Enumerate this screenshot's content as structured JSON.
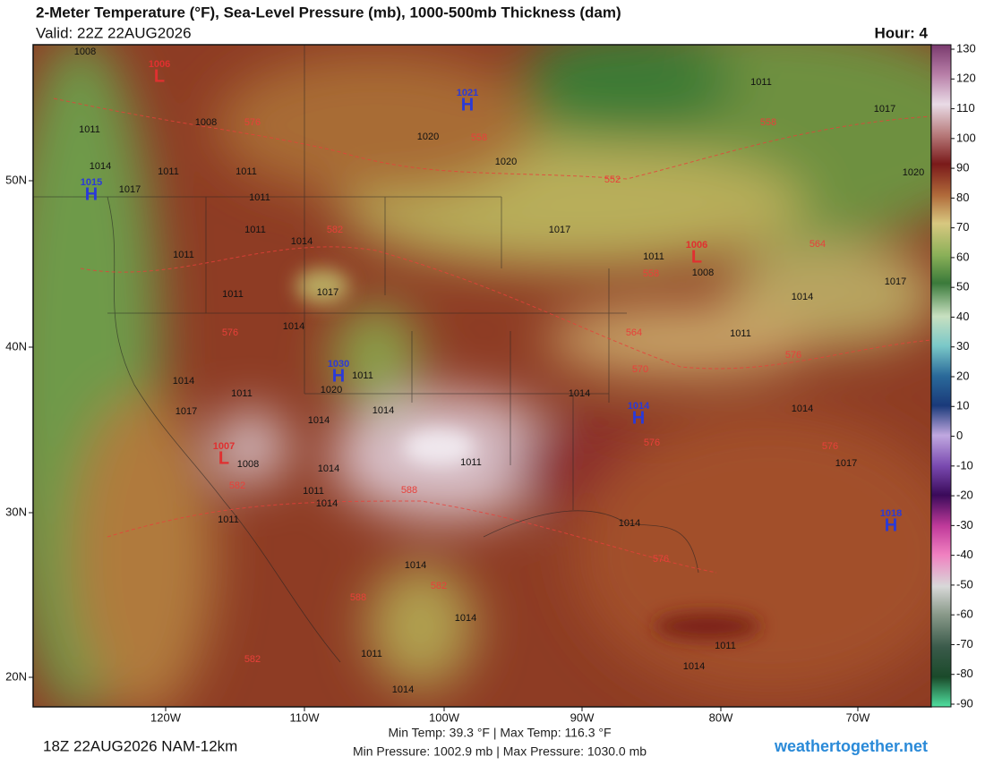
{
  "header": {
    "title": "2-Meter Temperature (°F), Sea-Level Pressure (mb), 1000-500mb Thickness (dam)",
    "valid": "Valid: 22Z 22AUG2026",
    "hour": "Hour: 4"
  },
  "map": {
    "lon_labels": [
      "120W",
      "110W",
      "100W",
      "90W",
      "80W",
      "70W"
    ],
    "lat_labels": [
      "50N",
      "40N",
      "30N",
      "20N"
    ],
    "isobar_labels": [
      "1008",
      "1008",
      "1011",
      "1014",
      "1011",
      "1011",
      "1011",
      "1017",
      "1011",
      "1014",
      "1011",
      "1011",
      "1017",
      "1014",
      "1020",
      "1020",
      "1017",
      "1011",
      "1008",
      "1011",
      "1017",
      "1020",
      "1014",
      "1017",
      "1011",
      "1014",
      "1014",
      "1017",
      "1011",
      "1014",
      "1017",
      "1011",
      "1008",
      "1011",
      "1014",
      "1014",
      "1014",
      "1014",
      "1011",
      "1020",
      "1014",
      "1014",
      "1014",
      "1011",
      "1014",
      "1011",
      "1011",
      "1014"
    ],
    "thickness_labels": [
      "576",
      "582",
      "558",
      "552",
      "558",
      "564",
      "558",
      "564",
      "570",
      "576",
      "576",
      "576",
      "576",
      "588",
      "582",
      "576",
      "582",
      "588",
      "582"
    ],
    "centers": [
      {
        "symbol": "L",
        "pressure": "1006"
      },
      {
        "symbol": "H",
        "pressure": "1021"
      },
      {
        "symbol": "H",
        "pressure": "1015"
      },
      {
        "symbol": "L",
        "pressure": "1006"
      },
      {
        "symbol": "H",
        "pressure": "1030"
      },
      {
        "symbol": "H",
        "pressure": "1014"
      },
      {
        "symbol": "L",
        "pressure": "1007"
      },
      {
        "symbol": "H",
        "pressure": "1018"
      }
    ]
  },
  "colorbar": {
    "ticks": [
      130,
      120,
      110,
      100,
      90,
      80,
      70,
      60,
      50,
      40,
      30,
      20,
      10,
      0,
      -10,
      -20,
      -30,
      -40,
      -50,
      -60,
      -70,
      -80,
      -90
    ]
  },
  "footer": {
    "run": "18Z 22AUG2026 NAM-12km",
    "temps": "Min Temp:  39.3 °F | Max Temp: 116.3 °F",
    "pressures": "Min Pressure: 1002.9 mb | Max Pressure: 1030.0 mb",
    "site": "weathertogether.net"
  }
}
